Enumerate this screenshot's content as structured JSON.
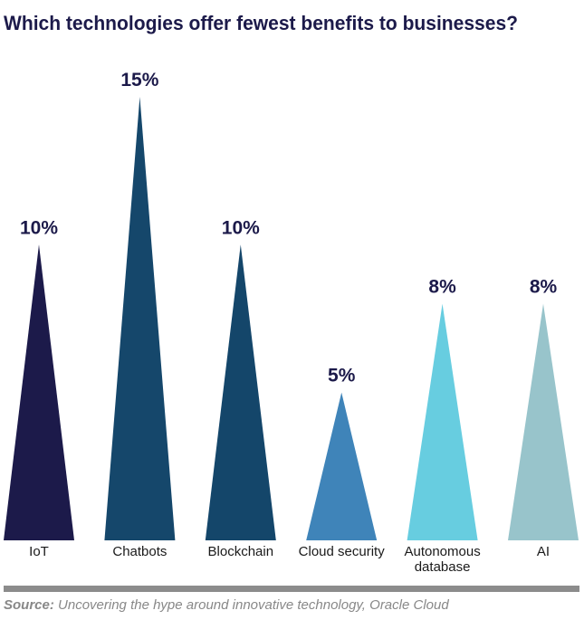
{
  "chart_data": {
    "type": "triangle-bar",
    "title": "Which technologies offer fewest benefits to businesses?",
    "categories": [
      "IoT",
      "Chatbots",
      "Blockchain",
      "Cloud security",
      "Autonomous database",
      "AI"
    ],
    "values": [
      10,
      15,
      10,
      5,
      8,
      8
    ],
    "value_labels": [
      "10%",
      "15%",
      "10%",
      "5%",
      "8%",
      "8%"
    ],
    "colors": [
      "#1c1a4a",
      "#15476b",
      "#14466a",
      "#3f84b9",
      "#67cde0",
      "#98c4cb"
    ],
    "source_label": "Source:",
    "source": "Uncovering the hype around innovative technology, Oracle Cloud"
  }
}
